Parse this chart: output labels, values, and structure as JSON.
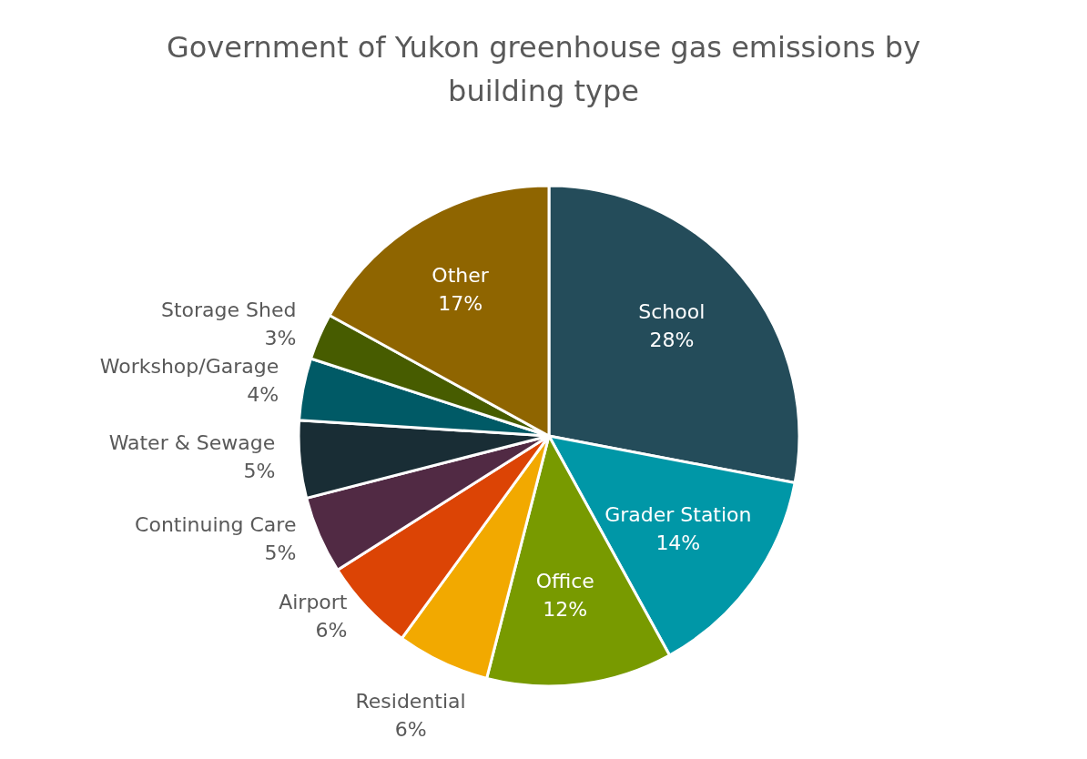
{
  "chart_data": {
    "type": "pie",
    "title": "Government of Yukon greenhouse gas emissions by building type",
    "categories": [
      "School",
      "Grader Station",
      "Office",
      "Residential",
      "Airport",
      "Continuing Care",
      "Water & Sewage",
      "Workshop/Garage",
      "Storage Shed",
      "Other"
    ],
    "values": [
      28,
      14,
      12,
      6,
      6,
      5,
      5,
      4,
      3,
      17
    ],
    "value_labels": [
      "28%",
      "14%",
      "12%",
      "6%",
      "6%",
      "5%",
      "5%",
      "4%",
      "3%",
      "17%"
    ],
    "colors": [
      "#244c5a",
      "#0097a7",
      "#789a00",
      "#f2a900",
      "#dc4405",
      "#512a44",
      "#192d35",
      "#005a66",
      "#475c00",
      "#8f6500"
    ],
    "legend": false
  }
}
